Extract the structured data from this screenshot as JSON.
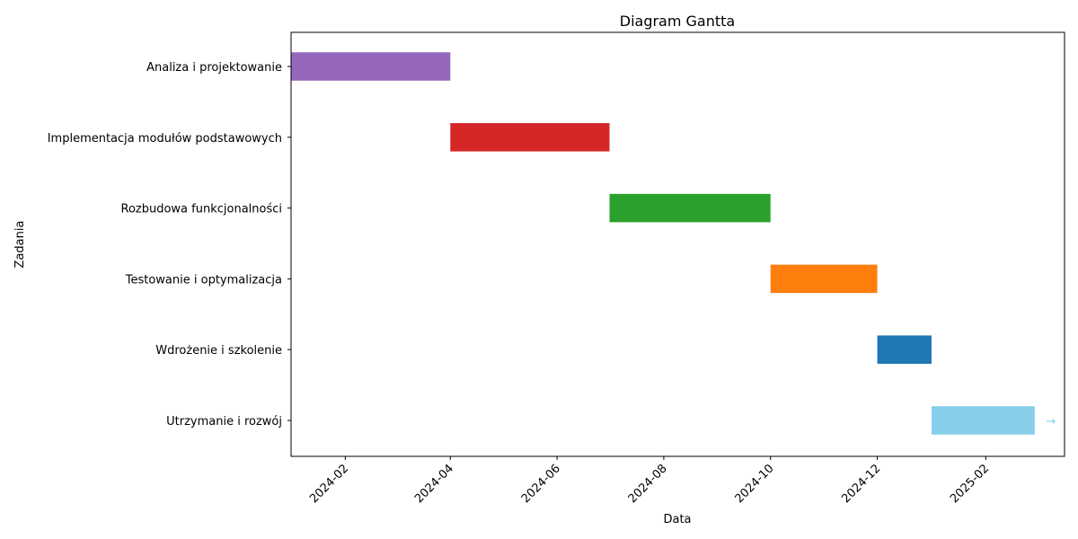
{
  "chart_data": {
    "type": "gantt",
    "title": "Diagram Gantta",
    "xlabel": "Data",
    "ylabel": "Zadania",
    "xlim": [
      "2024-01-01",
      "2025-03-18"
    ],
    "x_ticks": [
      "2024-02",
      "2024-04",
      "2024-06",
      "2024-08",
      "2024-10",
      "2024-12",
      "2025-02"
    ],
    "grid": false,
    "tasks": [
      {
        "name": "Analiza i projektowanie",
        "start": "2024-01-01",
        "end": "2024-04-01",
        "color": "#9467bd"
      },
      {
        "name": "Implementacja modułów podstawowych",
        "start": "2024-04-01",
        "end": "2024-07-01",
        "color": "#d62728"
      },
      {
        "name": "Rozbudowa funkcjonalności",
        "start": "2024-07-01",
        "end": "2024-10-01",
        "color": "#2ca02c"
      },
      {
        "name": "Testowanie i optymalizacja",
        "start": "2024-10-01",
        "end": "2024-12-01",
        "color": "#ff7f0e"
      },
      {
        "name": "Wdrożenie i szkolenie",
        "start": "2024-12-01",
        "end": "2025-01-01",
        "color": "#1f77b4"
      },
      {
        "name": "Utrzymanie i rozwój",
        "start": "2025-01-01",
        "end": "2025-03-01",
        "color": "#87ceeb",
        "annotation": "→"
      }
    ]
  }
}
